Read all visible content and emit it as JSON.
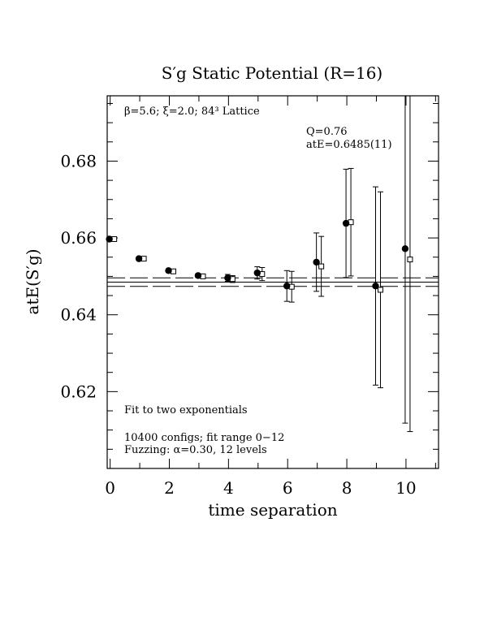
{
  "chart_data": {
    "type": "scatter",
    "title": "S′g  Static Potential (R=16)",
    "xlabel": "time separation",
    "ylabel": "atE(S′g)",
    "xlim": [
      -0.1,
      11.1
    ],
    "ylim": [
      0.6,
      0.697
    ],
    "x_ticks": [
      0,
      2,
      4,
      6,
      8,
      10
    ],
    "x_tick_labels": [
      "0",
      "2",
      "4",
      "6",
      "8",
      "10"
    ],
    "y_ticks": [
      0.62,
      0.64,
      0.66,
      0.68
    ],
    "y_tick_labels": [
      "0.62",
      "0.64",
      "0.66",
      "0.68"
    ],
    "series": [
      {
        "marker": "filled-circle",
        "points": [
          {
            "x": 0,
            "y": 0.6597,
            "err": 0.0003
          },
          {
            "x": 1,
            "y": 0.6546,
            "err": 0.0004
          },
          {
            "x": 2,
            "y": 0.6515,
            "err": 0.0004
          },
          {
            "x": 3,
            "y": 0.6502,
            "err": 0.0005
          },
          {
            "x": 4,
            "y": 0.6496,
            "err": 0.0009
          },
          {
            "x": 5,
            "y": 0.6509,
            "err": 0.0016
          },
          {
            "x": 6,
            "y": 0.6475,
            "err": 0.004
          },
          {
            "x": 7,
            "y": 0.6537,
            "err": 0.0076
          },
          {
            "x": 8,
            "y": 0.6638,
            "err": 0.0141
          },
          {
            "x": 9,
            "y": 0.6475,
            "err": 0.0258
          },
          {
            "x": 10,
            "y": 0.6572,
            "err": 0.0454
          }
        ]
      },
      {
        "marker": "open-square",
        "points": [
          {
            "x": 0,
            "y": 0.6597,
            "err": 0.0003
          },
          {
            "x": 1,
            "y": 0.6546,
            "err": 0.0004
          },
          {
            "x": 2,
            "y": 0.6513,
            "err": 0.0004
          },
          {
            "x": 3,
            "y": 0.65,
            "err": 0.0005
          },
          {
            "x": 4,
            "y": 0.6493,
            "err": 0.0009
          },
          {
            "x": 5,
            "y": 0.6506,
            "err": 0.0017
          },
          {
            "x": 6,
            "y": 0.6473,
            "err": 0.004
          },
          {
            "x": 7,
            "y": 0.6526,
            "err": 0.0078
          },
          {
            "x": 8,
            "y": 0.6641,
            "err": 0.014
          },
          {
            "x": 9,
            "y": 0.6465,
            "err": 0.0255
          },
          {
            "x": 10,
            "y": 0.6544,
            "err": 0.0448
          }
        ]
      }
    ],
    "fit": {
      "central": 0.6485,
      "error": 0.0011,
      "central_style": "solid",
      "band_style": "dashed"
    },
    "annotations": {
      "lattice": "β=5.6; ξ=2.0; 84³ Lattice",
      "q_value": "Q=0.76",
      "energy": "atE=0.6485(11)",
      "fit_note": "Fit to two exponentials",
      "configs": "10400 configs; fit range 0−12",
      "fuzzing": "Fuzzing: α=0.30, 12 levels"
    }
  }
}
